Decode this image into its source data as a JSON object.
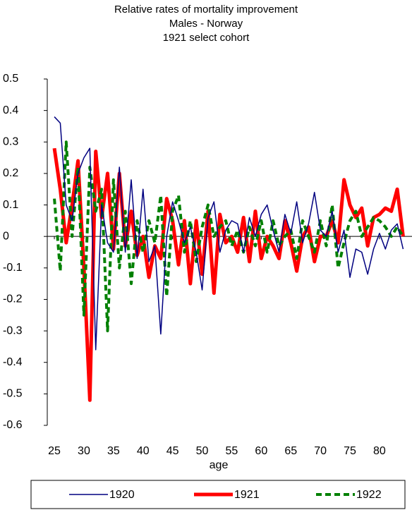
{
  "chart_data": {
    "type": "line",
    "title": "Relative rates of mortality improvement",
    "subtitle": "Males - Norway",
    "subtitle2": "1921 select cohort",
    "xlabel": "age",
    "x": [
      25,
      26,
      27,
      28,
      29,
      30,
      31,
      32,
      33,
      34,
      35,
      36,
      37,
      38,
      39,
      40,
      41,
      42,
      43,
      44,
      45,
      46,
      47,
      48,
      49,
      50,
      51,
      52,
      53,
      54,
      55,
      56,
      57,
      58,
      59,
      60,
      61,
      62,
      63,
      64,
      65,
      66,
      67,
      68,
      69,
      70,
      71,
      72,
      73,
      74,
      75,
      76,
      77,
      78,
      79,
      80,
      81,
      82,
      83,
      84
    ],
    "xlim": [
      23.8,
      85.5
    ],
    "xticks": [
      25,
      30,
      35,
      40,
      45,
      50,
      55,
      60,
      65,
      70,
      75,
      80
    ],
    "ylim": [
      -0.6,
      0.5
    ],
    "yticks": [
      0.5,
      0.4,
      0.3,
      0.2,
      0.1,
      0,
      -0.1,
      -0.2,
      -0.3,
      -0.4,
      -0.5,
      -0.6
    ],
    "series": [
      {
        "name": "1920",
        "color": "#000080",
        "width": 1.5,
        "dash": "none",
        "values": [
          0.38,
          0.36,
          0.1,
          0.05,
          0.2,
          0.25,
          0.28,
          -0.36,
          0.1,
          -0.02,
          -0.05,
          0.22,
          -0.05,
          0.18,
          -0.07,
          0.15,
          -0.08,
          -0.03,
          -0.31,
          0.0,
          0.11,
          0.05,
          -0.02,
          0.03,
          -0.05,
          -0.17,
          0.06,
          0.11,
          -0.05,
          0.02,
          0.05,
          0.04,
          -0.05,
          0.06,
          0.0,
          0.07,
          0.1,
          0.02,
          -0.05,
          0.07,
          0.01,
          0.11,
          -0.02,
          0.04,
          0.14,
          0.02,
          0.0,
          0.08,
          -0.05,
          0.02,
          -0.13,
          -0.04,
          -0.05,
          -0.12,
          -0.04,
          0.01,
          -0.04,
          0.02,
          0.04,
          -0.04
        ]
      },
      {
        "name": "1921",
        "color": "#ff0000",
        "width": 5,
        "dash": "none",
        "values": [
          0.28,
          0.15,
          -0.02,
          0.1,
          0.24,
          -0.1,
          -0.52,
          0.27,
          0.06,
          0.2,
          -0.04,
          0.2,
          -0.03,
          0.08,
          -0.06,
          0.0,
          -0.13,
          -0.03,
          -0.07,
          0.12,
          0.05,
          -0.09,
          0.05,
          -0.15,
          0.05,
          -0.12,
          0.08,
          -0.18,
          0.07,
          -0.02,
          0.0,
          -0.05,
          0.06,
          -0.08,
          0.08,
          -0.07,
          0.0,
          -0.03,
          -0.07,
          0.05,
          -0.02,
          -0.11,
          0.0,
          0.03,
          -0.08,
          0.0,
          0.0,
          0.05,
          -0.02,
          0.18,
          0.1,
          0.06,
          0.09,
          -0.03,
          0.06,
          0.07,
          0.09,
          0.08,
          0.15,
          0.0
        ]
      },
      {
        "name": "1922",
        "color": "#008000",
        "width": 4,
        "dash": "8,5",
        "values": [
          0.12,
          -0.11,
          0.3,
          0.0,
          0.22,
          -0.25,
          0.22,
          0.08,
          0.15,
          -0.3,
          0.18,
          -0.1,
          0.08,
          -0.15,
          0.05,
          -0.05,
          0.05,
          -0.02,
          0.13,
          -0.19,
          0.08,
          0.13,
          -0.05,
          0.05,
          -0.08,
          0.03,
          0.1,
          0.0,
          0.03,
          0.05,
          -0.03,
          0.02,
          -0.05,
          0.03,
          -0.03,
          0.05,
          -0.05,
          0.05,
          -0.03,
          0.0,
          0.02,
          -0.07,
          0.05,
          0.0,
          -0.05,
          0.05,
          -0.03,
          0.1,
          -0.1,
          -0.02,
          0.05,
          0.08,
          0.0,
          0.03,
          0.06,
          0.05,
          0.03,
          0.0,
          0.03,
          0.0
        ]
      }
    ]
  }
}
